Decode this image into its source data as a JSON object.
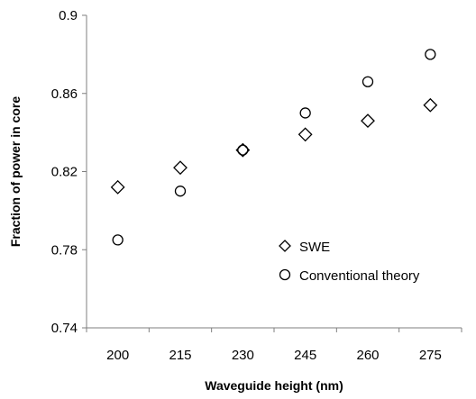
{
  "chart_data": {
    "type": "scatter",
    "title": "",
    "xlabel": "Waveguide height (nm)",
    "ylabel": "Fraction of power in core",
    "x_ticks": [
      "200",
      "215",
      "230",
      "245",
      "260",
      "275"
    ],
    "y_ticks": [
      "0.74",
      "0.78",
      "0.82",
      "0.86",
      "0.9"
    ],
    "xlim": [
      192.5,
      282.5
    ],
    "ylim": [
      0.74,
      0.9
    ],
    "grid": false,
    "legend_position": "lower-right",
    "series": [
      {
        "name": "SWE",
        "marker": "diamond",
        "x": [
          200,
          215,
          230,
          245,
          260,
          275
        ],
        "y": [
          0.812,
          0.822,
          0.831,
          0.839,
          0.846,
          0.854
        ]
      },
      {
        "name": "Conventional theory",
        "marker": "circle",
        "x": [
          200,
          215,
          230,
          245,
          260,
          275
        ],
        "y": [
          0.785,
          0.81,
          0.831,
          0.85,
          0.866,
          0.88
        ]
      }
    ]
  }
}
